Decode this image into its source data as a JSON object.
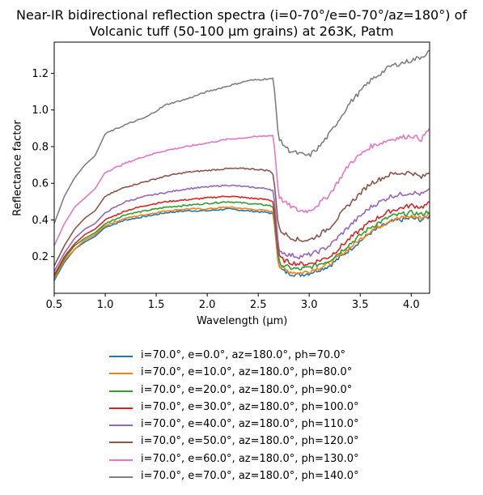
{
  "chart_data": {
    "type": "line",
    "title": "Near-IR bidirectional reflection spectra (i=0-70°/e=0-70°/az=180°) of Volcanic tuff (50-100 μm grains) at 263K, Patm",
    "title_lines": [
      "Near-IR bidirectional reflection spectra (i=0-70°/e=0-70°/az=180°) of",
      "Volcanic tuff (50-100 μm grains) at 263K, Patm"
    ],
    "xlabel": "Wavelength (μm)",
    "ylabel": "Reflectance factor",
    "xlim": [
      0.5,
      4.18
    ],
    "ylim": [
      0.0,
      1.37
    ],
    "xticks": [
      0.5,
      1.0,
      1.5,
      2.0,
      2.5,
      3.0,
      3.5,
      4.0
    ],
    "yticks": [
      0.2,
      0.4,
      0.6,
      0.8,
      1.0,
      1.2
    ],
    "xtick_labels": [
      "0.5",
      "1.0",
      "1.5",
      "2.0",
      "2.5",
      "3.0",
      "3.5",
      "4.0"
    ],
    "ytick_labels": [
      "0.2",
      "0.4",
      "0.6",
      "0.8",
      "1.0",
      "1.2"
    ],
    "grid": false,
    "legend_position": "below plot",
    "x": [
      0.5,
      0.6,
      0.7,
      0.8,
      0.9,
      1.0,
      1.2,
      1.4,
      1.6,
      1.8,
      2.0,
      2.2,
      2.4,
      2.6,
      2.65,
      2.7,
      2.75,
      2.8,
      2.9,
      3.0,
      3.1,
      3.2,
      3.4,
      3.6,
      3.8,
      4.0,
      4.1,
      4.18
    ],
    "series": [
      {
        "name": "i=70.0°, e=0.0°, az=180.0°, ph=70.0°",
        "color": "#1f77b4",
        "values": [
          0.07,
          0.17,
          0.24,
          0.28,
          0.31,
          0.36,
          0.4,
          0.42,
          0.44,
          0.45,
          0.45,
          0.46,
          0.45,
          0.44,
          0.43,
          0.14,
          0.12,
          0.11,
          0.1,
          0.11,
          0.13,
          0.15,
          0.24,
          0.33,
          0.39,
          0.41,
          0.4,
          0.42
        ]
      },
      {
        "name": "i=70.0°, e=10.0°, az=180.0°, ph=80.0°",
        "color": "#ff7f0e",
        "values": [
          0.08,
          0.18,
          0.24,
          0.29,
          0.32,
          0.37,
          0.41,
          0.43,
          0.45,
          0.46,
          0.46,
          0.47,
          0.46,
          0.45,
          0.44,
          0.15,
          0.13,
          0.12,
          0.11,
          0.12,
          0.14,
          0.16,
          0.25,
          0.34,
          0.4,
          0.42,
          0.41,
          0.43
        ]
      },
      {
        "name": "i=70.0°, e=20.0°, az=180.0°, ph=90.0°",
        "color": "#2ca02c",
        "values": [
          0.09,
          0.19,
          0.26,
          0.3,
          0.33,
          0.38,
          0.43,
          0.45,
          0.47,
          0.48,
          0.49,
          0.5,
          0.49,
          0.48,
          0.47,
          0.17,
          0.15,
          0.14,
          0.13,
          0.14,
          0.16,
          0.18,
          0.27,
          0.36,
          0.42,
          0.44,
          0.43,
          0.45
        ]
      },
      {
        "name": "i=70.0°, e=30.0°, az=180.0°, ph=100.0°",
        "color": "#d62728",
        "values": [
          0.1,
          0.2,
          0.27,
          0.32,
          0.35,
          0.4,
          0.45,
          0.48,
          0.5,
          0.51,
          0.52,
          0.53,
          0.52,
          0.51,
          0.5,
          0.2,
          0.18,
          0.17,
          0.16,
          0.16,
          0.18,
          0.2,
          0.3,
          0.39,
          0.45,
          0.48,
          0.47,
          0.49
        ]
      },
      {
        "name": "i=70.0°, e=40.0°, az=180.0°, ph=110.0°",
        "color": "#9467bd",
        "values": [
          0.12,
          0.22,
          0.3,
          0.35,
          0.38,
          0.44,
          0.5,
          0.53,
          0.55,
          0.57,
          0.58,
          0.59,
          0.58,
          0.57,
          0.56,
          0.24,
          0.22,
          0.21,
          0.2,
          0.21,
          0.23,
          0.26,
          0.37,
          0.47,
          0.53,
          0.55,
          0.54,
          0.56
        ]
      },
      {
        "name": "i=70.0°, e=50.0°, az=180.0°, ph=120.0°",
        "color": "#8c564b",
        "values": [
          0.15,
          0.26,
          0.35,
          0.41,
          0.45,
          0.53,
          0.58,
          0.61,
          0.64,
          0.66,
          0.67,
          0.68,
          0.68,
          0.67,
          0.65,
          0.35,
          0.33,
          0.31,
          0.29,
          0.29,
          0.32,
          0.36,
          0.49,
          0.6,
          0.65,
          0.66,
          0.63,
          0.66
        ]
      },
      {
        "name": "i=70.0°, e=60.0°, az=180.0°, ph=130.0°",
        "color": "#e377c2",
        "values": [
          0.26,
          0.38,
          0.47,
          0.52,
          0.57,
          0.66,
          0.71,
          0.75,
          0.78,
          0.8,
          0.82,
          0.84,
          0.85,
          0.86,
          0.86,
          0.53,
          0.5,
          0.48,
          0.45,
          0.45,
          0.49,
          0.54,
          0.71,
          0.8,
          0.84,
          0.86,
          0.84,
          0.9
        ]
      },
      {
        "name": "i=70.0°, e=70.0°, az=180.0°, ph=140.0°",
        "color": "#7f7f7f",
        "values": [
          0.38,
          0.53,
          0.63,
          0.7,
          0.75,
          0.87,
          0.92,
          0.96,
          1.03,
          1.06,
          1.1,
          1.13,
          1.16,
          1.17,
          1.17,
          0.84,
          0.81,
          0.78,
          0.76,
          0.75,
          0.8,
          0.87,
          1.04,
          1.16,
          1.24,
          1.27,
          1.29,
          1.32
        ]
      }
    ]
  }
}
